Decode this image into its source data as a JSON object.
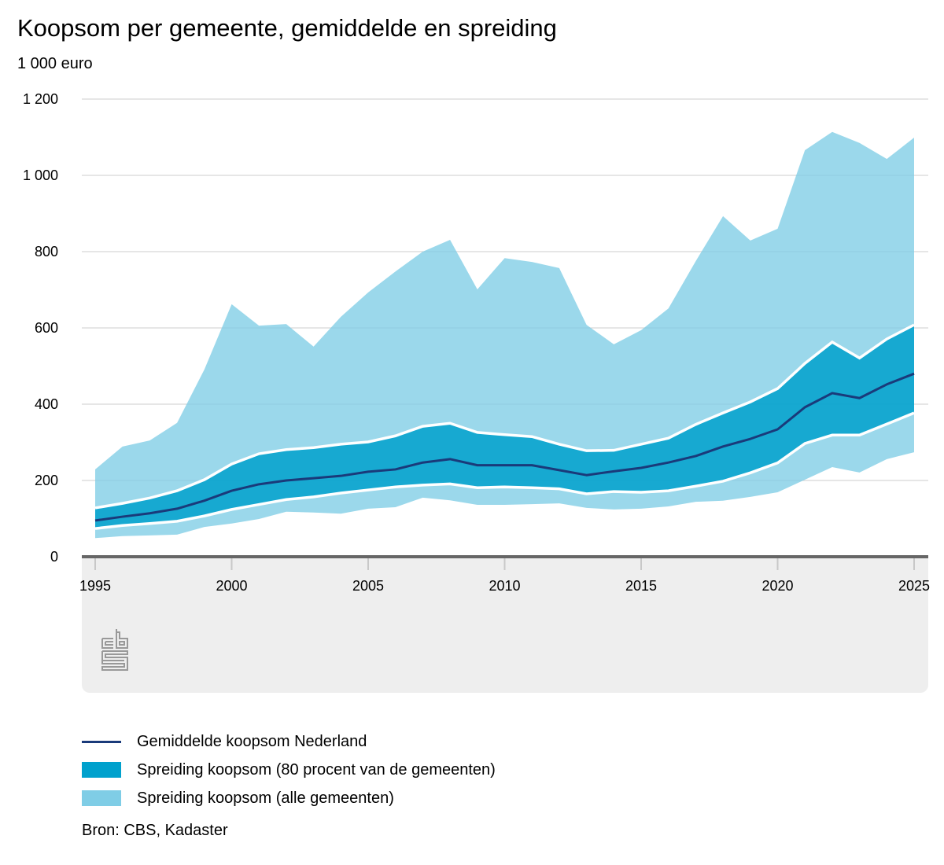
{
  "title": "Koopsom per gemeente, gemiddelde en spreiding",
  "subtitle": "1 000 euro",
  "legend": [
    {
      "label": "Gemiddelde koopsom Nederland",
      "kind": "line",
      "color": "#1a3a7a"
    },
    {
      "label": "Spreiding koopsom (80 procent van de gemeenten)",
      "kind": "area",
      "color": "#00a1cd"
    },
    {
      "label": "Spreiding koopsom (alle gemeenten)",
      "kind": "area",
      "color": "#7fcde6"
    }
  ],
  "source": "Bron: CBS, Kadaster",
  "logo": "cbs-logo",
  "chart_data": {
    "type": "area",
    "title": "Koopsom per gemeente, gemiddelde en spreiding",
    "ylabel": "1 000 euro",
    "xlabel": "",
    "ylim": [
      0,
      1200
    ],
    "yticks": [
      0,
      200,
      400,
      600,
      800,
      1000,
      1200
    ],
    "ytick_labels": [
      "0",
      "200",
      "400",
      "600",
      "800",
      "1 000",
      "1 200"
    ],
    "xlim": [
      1995,
      2025
    ],
    "xticks": [
      1995,
      2000,
      2005,
      2010,
      2015,
      2020,
      2025
    ],
    "xtick_labels": [
      "1995",
      "2000",
      "2005",
      "2010",
      "2015",
      "2020",
      "2025"
    ],
    "grid": true,
    "legend_position": "bottom",
    "x": [
      1995,
      1996,
      1997,
      1998,
      1999,
      2000,
      2001,
      2002,
      2003,
      2004,
      2005,
      2006,
      2007,
      2008,
      2009,
      2010,
      2011,
      2012,
      2013,
      2014,
      2015,
      2016,
      2017,
      2018,
      2019,
      2020,
      2021,
      2022,
      2023,
      2024,
      2025
    ],
    "series": [
      {
        "name": "Spreiding koopsom (alle gemeenten) - minimum",
        "role": "all_min",
        "values": [
          49,
          54,
          56,
          58,
          78,
          87,
          99,
          118,
          116,
          113,
          126,
          130,
          155,
          148,
          136,
          136,
          138,
          140,
          128,
          124,
          126,
          132,
          144,
          147,
          157,
          169,
          202,
          235,
          221,
          256,
          274
        ]
      },
      {
        "name": "Spreiding koopsom (alle gemeenten) - maximum",
        "role": "all_max",
        "values": [
          229,
          289,
          305,
          351,
          491,
          662,
          606,
          610,
          551,
          629,
          693,
          748,
          800,
          831,
          701,
          783,
          773,
          757,
          608,
          557,
          594,
          651,
          775,
          893,
          829,
          860,
          1066,
          1114,
          1085,
          1043,
          1099
        ]
      },
      {
        "name": "Spreiding koopsom (80 procent van de gemeenten) - ondergrens",
        "role": "p10",
        "values": [
          74,
          82,
          87,
          93,
          107,
          124,
          137,
          150,
          157,
          167,
          175,
          183,
          188,
          191,
          181,
          183,
          181,
          178,
          165,
          171,
          169,
          173,
          185,
          198,
          220,
          246,
          297,
          319,
          319,
          348,
          377
        ]
      },
      {
        "name": "Spreiding koopsom (80 procent van de gemeenten) - bovengrens",
        "role": "p90",
        "values": [
          128,
          140,
          154,
          173,
          202,
          243,
          270,
          281,
          286,
          295,
          301,
          317,
          342,
          350,
          326,
          320,
          315,
          295,
          278,
          279,
          295,
          311,
          347,
          377,
          406,
          441,
          507,
          563,
          521,
          571,
          608
        ]
      },
      {
        "name": "Gemiddelde koopsom Nederland",
        "role": "mean",
        "values": [
          95,
          105,
          114,
          126,
          147,
          173,
          190,
          200,
          206,
          212,
          223,
          229,
          247,
          256,
          240,
          240,
          240,
          227,
          214,
          224,
          233,
          247,
          264,
          289,
          309,
          334,
          392,
          429,
          416,
          452,
          480
        ]
      }
    ],
    "colors": {
      "all_area": "#7fcde6",
      "p80_area": "#00a1cd",
      "mean_line": "#1a3a7a",
      "band_border": "#ffffff",
      "gridline": "#cccccc",
      "axis": "#666666",
      "panel": "#eeeeee"
    }
  }
}
